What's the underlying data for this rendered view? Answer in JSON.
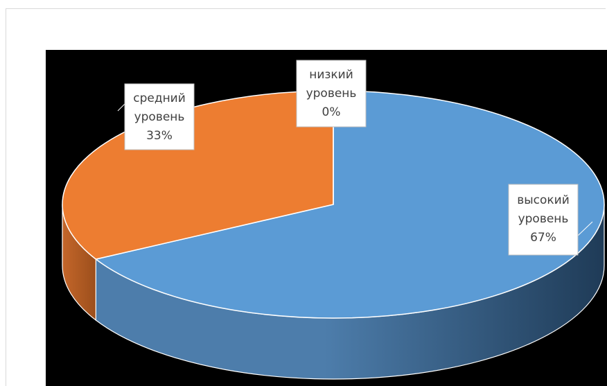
{
  "chart_data": {
    "type": "pie",
    "style": "3d",
    "slices": [
      {
        "label_lines": [
          "высокий",
          "уровень",
          "67%"
        ],
        "value": 67,
        "color": "#5b9bd5",
        "side_color_dark": "#1f3b57",
        "side_color_light": "#4d7dab"
      },
      {
        "label_lines": [
          "средний",
          "уровень",
          "33%"
        ],
        "value": 33,
        "color": "#ed7d31",
        "side_color_dark": "#9c4f1c",
        "side_color_light": "#c4662a"
      },
      {
        "label_lines": [
          "низкий",
          "уровень",
          "0%"
        ],
        "value": 0,
        "color": "#a5a5a5",
        "side_color_dark": "#6e6e6e",
        "side_color_light": "#8a8a8a"
      }
    ],
    "background": "#000000",
    "legend": "none"
  }
}
